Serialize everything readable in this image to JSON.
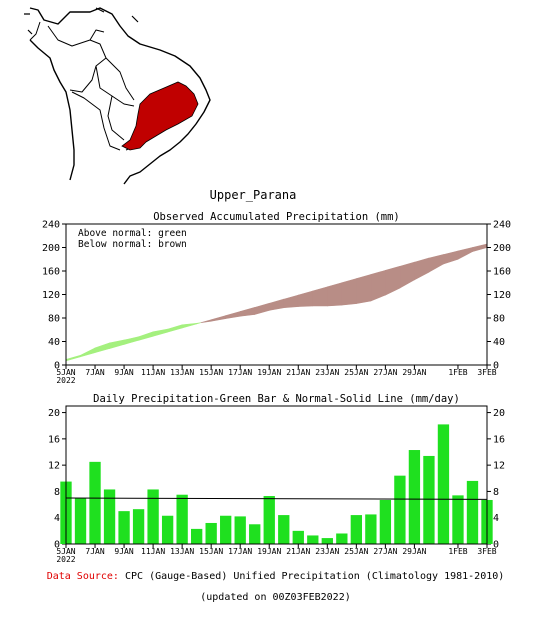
{
  "region_title": "Upper_Parana",
  "colors": {
    "above_normal": "#a4f07e",
    "below_normal": "#b88d86",
    "bar_fill": "#1fe01f",
    "region_fill": "#c00000",
    "data_source_label": "#e00000"
  },
  "chart_data": [
    {
      "type": "area",
      "title": "Observed Accumulated Precipitation (mm)",
      "annotations": [
        "Above normal: green",
        "Below normal: brown"
      ],
      "xlabel": "",
      "ylabel": "",
      "ylim": [
        0,
        240
      ],
      "yticks": [
        0,
        40,
        80,
        120,
        160,
        200,
        240
      ],
      "xticks": [
        "5JAN\n2022",
        "7JAN",
        "9JAN",
        "11JAN",
        "13JAN",
        "15JAN",
        "17JAN",
        "19JAN",
        "21JAN",
        "23JAN",
        "25JAN",
        "27JAN",
        "29JAN",
        "1FEB",
        "3FEB"
      ],
      "tick_days": [
        0,
        2,
        4,
        6,
        8,
        10,
        12,
        14,
        16,
        18,
        20,
        22,
        24,
        27,
        29
      ],
      "grid": false,
      "series": [
        {
          "name": "Observed",
          "x": [
            0,
            1,
            2,
            3,
            4,
            5,
            6,
            7,
            8,
            9,
            10,
            11,
            12,
            13,
            14,
            15,
            16,
            17,
            18,
            19,
            20,
            21,
            22,
            23,
            24,
            25,
            26,
            27,
            28,
            29
          ],
          "values": [
            9.5,
            16.5,
            29,
            37.5,
            42.5,
            48,
            56.5,
            61,
            68.5,
            71,
            74.5,
            79,
            83,
            86,
            93,
            97.5,
            99.5,
            100.5,
            100.5,
            102,
            104.5,
            109,
            119,
            131,
            145,
            158,
            172,
            180,
            193,
            200
          ]
        },
        {
          "name": "Normal",
          "x": [
            0,
            1,
            2,
            3,
            4,
            5,
            6,
            7,
            8,
            9,
            10,
            11,
            12,
            13,
            14,
            15,
            16,
            17,
            18,
            19,
            20,
            21,
            22,
            23,
            24,
            25,
            26,
            27,
            28,
            29
          ],
          "values": [
            7,
            14,
            21,
            28,
            35,
            42,
            49,
            56,
            63,
            70,
            77,
            84,
            91,
            98,
            105,
            112,
            119,
            126,
            133,
            140,
            147,
            154,
            161,
            168,
            175,
            182,
            188,
            194,
            200,
            206
          ]
        }
      ]
    },
    {
      "type": "bar",
      "title": "Daily Precipitation-Green Bar & Normal-Solid Line (mm/day)",
      "xlabel": "",
      "ylabel": "",
      "ylim": [
        0,
        21
      ],
      "yticks": [
        0,
        4,
        8,
        12,
        16,
        20
      ],
      "xticks": [
        "5JAN\n2022",
        "7JAN",
        "9JAN",
        "11JAN",
        "13JAN",
        "15JAN",
        "17JAN",
        "19JAN",
        "21JAN",
        "23JAN",
        "25JAN",
        "27JAN",
        "29JAN",
        "1FEB",
        "3FEB"
      ],
      "tick_days": [
        0,
        2,
        4,
        6,
        8,
        10,
        12,
        14,
        16,
        18,
        20,
        22,
        24,
        27,
        29
      ],
      "grid": false,
      "series": [
        {
          "name": "Daily precipitation",
          "x": [
            0,
            1,
            2,
            3,
            4,
            5,
            6,
            7,
            8,
            9,
            10,
            11,
            12,
            13,
            14,
            15,
            16,
            17,
            18,
            19,
            20,
            21,
            22,
            23,
            24,
            25,
            26,
            27,
            28,
            29
          ],
          "values": [
            9.5,
            7,
            12.5,
            8.3,
            5,
            5.3,
            8.3,
            4.3,
            7.5,
            2.3,
            3.2,
            4.3,
            4.2,
            3,
            7.3,
            4.4,
            2,
            1.3,
            0.9,
            1.6,
            4.4,
            4.5,
            6.7,
            10.4,
            14.3,
            13.4,
            18.2,
            7.4,
            9.6,
            6.7
          ]
        },
        {
          "name": "Normal",
          "x": [
            0,
            29
          ],
          "values": [
            7,
            6.8
          ]
        }
      ]
    }
  ],
  "footer": {
    "source_label": "Data Source:",
    "source_text": "CPC (Gauge-Based) Unified Precipitation (Climatology 1981-2010)",
    "updated": "(updated on 00Z03FEB2022)"
  }
}
